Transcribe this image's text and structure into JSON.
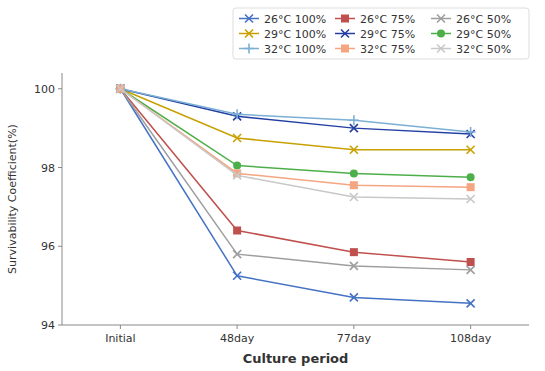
{
  "chart_data": {
    "type": "line",
    "categories": [
      "Initial",
      "48day",
      "77day",
      "108day"
    ],
    "series": [
      {
        "name": "26°C 100%",
        "color": "#4472C4",
        "marker": "x",
        "line_style": "solid",
        "values": [
          100,
          95.25,
          94.7,
          94.55
        ]
      },
      {
        "name": "26°C 75%",
        "color": "#C0504D",
        "marker": "square",
        "line_style": "solid",
        "values": [
          100,
          96.4,
          95.85,
          95.6
        ]
      },
      {
        "name": "26°C 50%",
        "color": "#9E9E9E",
        "marker": "x",
        "line_style": "solid",
        "values": [
          100,
          95.8,
          95.5,
          95.4
        ]
      },
      {
        "name": "29°C 100%",
        "color": "#C8A000",
        "marker": "x",
        "line_style": "solid",
        "values": [
          100,
          98.75,
          98.45,
          98.45
        ]
      },
      {
        "name": "29°C 75%",
        "color": "#243FA3",
        "marker": "x",
        "line_style": "solid",
        "values": [
          100,
          99.3,
          99.0,
          98.85
        ]
      },
      {
        "name": "29°C 50%",
        "color": "#4DAF4A",
        "marker": "circle",
        "line_style": "solid",
        "values": [
          100,
          98.05,
          97.85,
          97.75
        ]
      },
      {
        "name": "32°C 100%",
        "color": "#7BAFD4",
        "marker": "plus",
        "line_style": "solid",
        "values": [
          100,
          99.35,
          99.2,
          98.9
        ]
      },
      {
        "name": "32°C 75%",
        "color": "#F4A582",
        "marker": "square",
        "line_style": "solid",
        "values": [
          100,
          97.85,
          97.55,
          97.5
        ]
      },
      {
        "name": "32°C 50%",
        "color": "#C8C8C8",
        "marker": "x",
        "line_style": "solid",
        "values": [
          100,
          97.8,
          97.25,
          97.2
        ]
      }
    ],
    "xlabel": "Culture period",
    "ylabel": "Survivability Coefficient(%)",
    "ylim": [
      94,
      100.4
    ],
    "yticks": [
      94,
      96,
      98,
      100
    ],
    "grid": false,
    "legend": "upper right"
  }
}
